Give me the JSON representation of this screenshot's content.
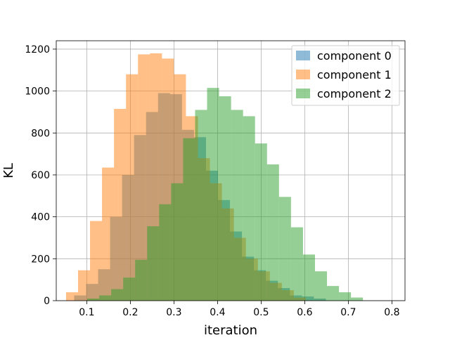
{
  "chart_data": {
    "type": "histogram",
    "title": "",
    "xlabel": "iteration",
    "ylabel": "KL",
    "xlim": [
      0.03,
      0.83
    ],
    "ylim": [
      0,
      1240
    ],
    "xticks": [
      "0.1",
      "0.2",
      "0.3",
      "0.4",
      "0.5",
      "0.6",
      "0.7",
      "0.8"
    ],
    "yticks": [
      "0",
      "200",
      "400",
      "600",
      "800",
      "1000",
      "1200"
    ],
    "grid": true,
    "legend": "top-right",
    "alpha": 0.5,
    "series": [
      {
        "name": "component 0",
        "color": "#1f77b4",
        "bin_start": 0.071,
        "bin_width": 0.0275,
        "values": [
          25,
          80,
          150,
          400,
          600,
          790,
          900,
          990,
          985,
          815,
          780,
          620,
          480,
          330,
          210,
          145,
          95,
          60,
          25,
          20,
          10
        ]
      },
      {
        "name": "component 1",
        "color": "#ff7f0e",
        "bin_start": 0.0525,
        "bin_width": 0.0275,
        "values": [
          40,
          145,
          380,
          635,
          915,
          1080,
          1175,
          1180,
          1155,
          1080,
          880,
          680,
          560,
          440,
          300,
          200,
          140,
          85,
          50,
          15
        ]
      },
      {
        "name": "component 2",
        "color": "#2ca02c",
        "bin_start": 0.101,
        "bin_width": 0.0275,
        "values": [
          10,
          25,
          55,
          110,
          195,
          355,
          460,
          560,
          775,
          910,
          1015,
          975,
          910,
          880,
          750,
          650,
          495,
          350,
          220,
          140,
          70,
          40,
          15
        ]
      }
    ]
  }
}
